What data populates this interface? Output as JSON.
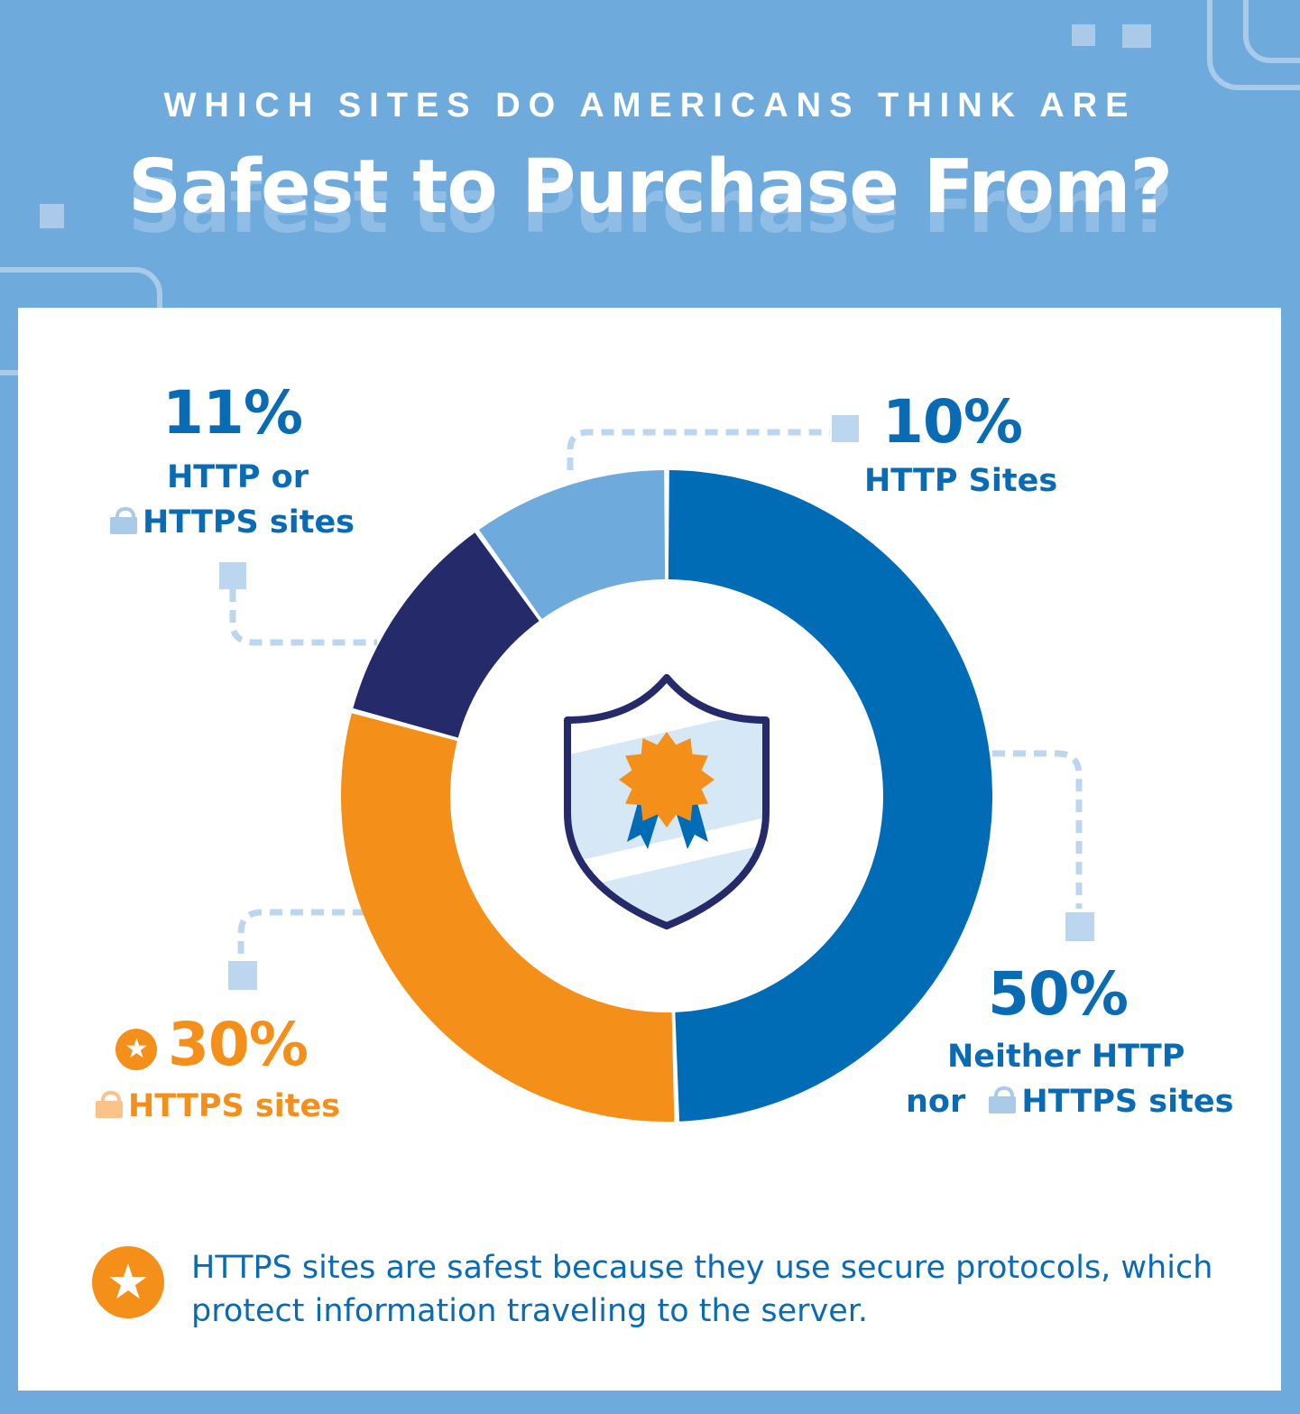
{
  "header": {
    "kicker": "WHICH SITES DO AMERICANS THINK ARE",
    "headline": "Safest to Purchase From?"
  },
  "colors": {
    "background": "#6eaadc",
    "http_sites": "#6eaadc",
    "neither": "#006cb5",
    "https_sites": "#f48f1a",
    "http_or_https": "#252a6a"
  },
  "chart_data": {
    "type": "pie",
    "style": "donut",
    "center_icon": "shield-badge-icon",
    "slices": [
      {
        "label_lines": [
          "Neither HTTP",
          "nor HTTPS sites"
        ],
        "value": 50,
        "pct_label": "50%",
        "color": "#006cb5"
      },
      {
        "label_lines": [
          "HTTPS sites"
        ],
        "value": 30,
        "pct_label": "30%",
        "color": "#f48f1a",
        "marker": "star-icon"
      },
      {
        "label_lines": [
          "HTTP or",
          "HTTPS sites"
        ],
        "value": 11,
        "pct_label": "11%",
        "color": "#252a6a"
      },
      {
        "label_lines": [
          "HTTP Sites"
        ],
        "value": 10,
        "pct_label": "10%",
        "color": "#6eaadc"
      }
    ]
  },
  "labels": {
    "http": {
      "pct": "10%",
      "line1": "HTTP Sites"
    },
    "neither": {
      "pct": "50%",
      "line1": "Neither HTTP",
      "line2_a": "nor",
      "line2_b": "HTTPS sites"
    },
    "https": {
      "pct": "30%",
      "line1": "HTTPS sites"
    },
    "either": {
      "pct": "11%",
      "line1": "HTTP or",
      "line2": "HTTPS sites"
    }
  },
  "footnote": {
    "icon": "star-icon",
    "text": "HTTPS sites are safest because they use secure protocols, which protect information traveling to the server."
  }
}
